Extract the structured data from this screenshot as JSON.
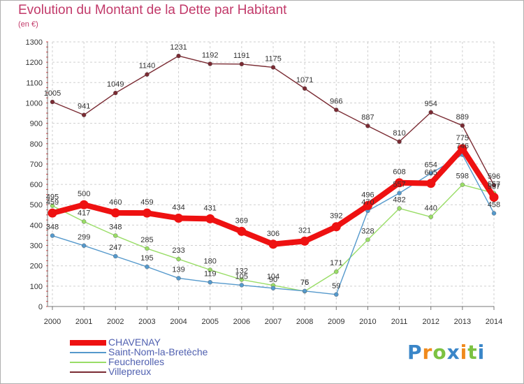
{
  "title": "Evolution du Montant de la Dette par Habitant",
  "subtitle": "(en €)",
  "logo": "Proxiti",
  "chart_data": {
    "type": "line",
    "title": "Evolution du Montant de la Dette par Habitant",
    "subtitle": "(en €)",
    "xlabel": "",
    "ylabel": "",
    "ylim": [
      0,
      1300
    ],
    "yticks": [
      0,
      100,
      200,
      300,
      400,
      500,
      600,
      700,
      800,
      900,
      1000,
      1100,
      1200,
      1300
    ],
    "grid": true,
    "legend_position": "bottom-left",
    "categories": [
      "2000",
      "2001",
      "2002",
      "2003",
      "2004",
      "2005",
      "2006",
      "2007",
      "2008",
      "2009",
      "2010",
      "2011",
      "2012",
      "2013",
      "2014"
    ],
    "series": [
      {
        "name": "Villepreux",
        "color": "#7a2b33",
        "values": [
          1005,
          941,
          1049,
          1140,
          1231,
          1192,
          1191,
          1175,
          1071,
          966,
          887,
          810,
          954,
          889,
          596
        ]
      },
      {
        "name": "Feucherolles",
        "color": "#99dd66",
        "values": [
          495,
          417,
          348,
          285,
          233,
          180,
          132,
          104,
          75,
          171,
          328,
          482,
          440,
          598,
          557
        ]
      },
      {
        "name": "Saint-Nom-la-Bretèche",
        "color": "#5599cc",
        "values": [
          348,
          299,
          247,
          195,
          139,
          119,
          105,
          90,
          76,
          59,
          470,
          557,
          654,
          746,
          458
        ]
      },
      {
        "name": "CHAVENAY",
        "color": "#ee1111",
        "values": [
          459,
          500,
          460,
          459,
          434,
          431,
          369,
          306,
          321,
          392,
          496,
          608,
          605,
          775,
          537
        ]
      }
    ],
    "legend_order": [
      "CHAVENAY",
      "Saint-Nom-la-Bretèche",
      "Feucherolles",
      "Villepreux"
    ]
  }
}
